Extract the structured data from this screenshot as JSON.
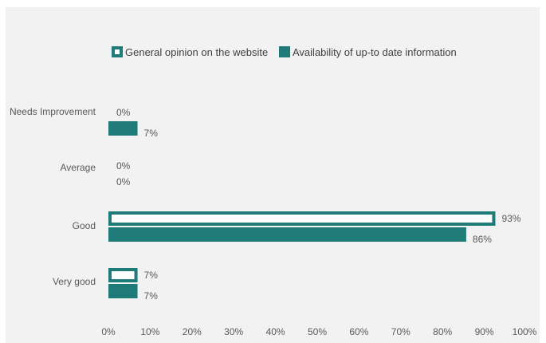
{
  "chart_data": {
    "type": "bar",
    "orientation": "horizontal",
    "categories": [
      "Needs Improvement",
      "Average",
      "Good",
      "Very good"
    ],
    "series": [
      {
        "name": "General opinion on the website",
        "values": [
          0,
          0,
          93,
          7
        ],
        "labels": [
          "0%",
          "0%",
          "93%",
          "7%"
        ],
        "color": "#1f7b78",
        "style": "outline"
      },
      {
        "name": "Availability of up-to date information",
        "values": [
          7,
          0,
          86,
          7
        ],
        "labels": [
          "7%",
          "0%",
          "86%",
          "7%"
        ],
        "color": "#1f7b78",
        "style": "solid"
      }
    ],
    "xlim": [
      0,
      100
    ],
    "x_ticks": [
      "0%",
      "10%",
      "20%",
      "30%",
      "40%",
      "50%",
      "60%",
      "70%",
      "80%",
      "90%",
      "100%"
    ],
    "legend_position": "top",
    "grid": false
  }
}
